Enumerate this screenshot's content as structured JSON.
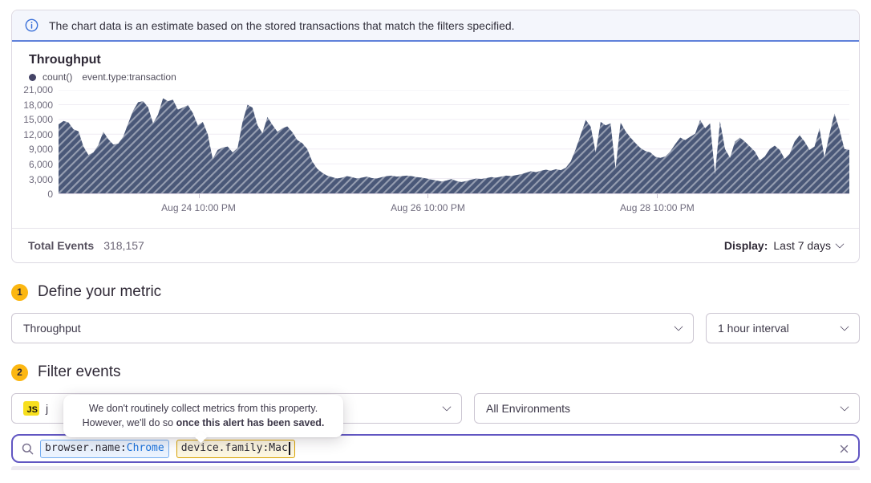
{
  "banner": {
    "text": "The chart data is an estimate based on the stored transactions that match the filters specified."
  },
  "chart": {
    "title": "Throughput",
    "legend_metric": "count()",
    "legend_filter": "event.type:transaction"
  },
  "chart_data": {
    "type": "area",
    "title": "Throughput",
    "series_name": "count() event.type:transaction",
    "ymax": 21000,
    "ylim": [
      0,
      21000
    ],
    "grid": true,
    "yticks": [
      "21,000",
      "18,000",
      "15,000",
      "12,000",
      "9,000",
      "6,000",
      "3,000",
      "0"
    ],
    "xticks": [
      {
        "label": "Aug 24 10:00 PM",
        "pos": 0.177
      },
      {
        "label": "Aug 26 10:00 PM",
        "pos": 0.467
      },
      {
        "label": "Aug 28 10:00 PM",
        "pos": 0.757
      }
    ],
    "values": [
      14000,
      14700,
      14400,
      13000,
      12600,
      9500,
      7800,
      8300,
      9800,
      12500,
      11000,
      9900,
      10100,
      11500,
      14200,
      16800,
      18500,
      18700,
      17500,
      14200,
      16000,
      19300,
      18700,
      19000,
      17000,
      17400,
      17900,
      16300,
      13800,
      14500,
      12000,
      7000,
      8800,
      9300,
      9500,
      8300,
      9200,
      14500,
      18000,
      17400,
      13800,
      12200,
      15500,
      13900,
      12500,
      13200,
      13600,
      12400,
      10800,
      10200,
      9000,
      6500,
      5000,
      4200,
      3600,
      3300,
      3000,
      3200,
      3500,
      3300,
      3000,
      3200,
      3400,
      3100,
      3000,
      3300,
      3500,
      3600,
      3400,
      3500,
      3600,
      3500,
      3300,
      3200,
      3000,
      2800,
      2600,
      2400,
      2600,
      2900,
      2500,
      2300,
      2500,
      2800,
      3000,
      2900,
      3100,
      3300,
      3200,
      3400,
      3600,
      3500,
      3700,
      3900,
      4200,
      4500,
      4300,
      4600,
      4800,
      4600,
      4900,
      4700,
      5200,
      6500,
      9000,
      12000,
      14900,
      13500,
      8300,
      14500,
      13800,
      14200,
      5000,
      14400,
      12600,
      11300,
      10200,
      9200,
      8600,
      8300,
      7400,
      7200,
      7500,
      8500,
      10000,
      11300,
      10800,
      11500,
      12100,
      14900,
      13200,
      14200,
      3900,
      14600,
      9000,
      7200,
      10500,
      11300,
      10500,
      9500,
      8500,
      6700,
      7500,
      9000,
      9700,
      8800,
      7000,
      8000,
      10500,
      11800,
      10500,
      8800,
      9500,
      13200,
      7300,
      12000,
      16200,
      13000,
      9000,
      8800
    ]
  },
  "chart_footer": {
    "total_label": "Total Events",
    "total_value": "318,157",
    "display_label": "Display:",
    "display_value": "Last 7 days"
  },
  "step1": {
    "num": "1",
    "title": "Define your metric"
  },
  "step2": {
    "num": "2",
    "title": "Filter events"
  },
  "metric_select": {
    "value": "Throughput"
  },
  "interval_select": {
    "value": "1 hour interval"
  },
  "project_select": {
    "badge": "JS",
    "visible_label": "j"
  },
  "env_select": {
    "value": "All Environments"
  },
  "tooltip": {
    "line1": "We don't routinely collect metrics from this property.",
    "line2_normal": "However, we'll do so ",
    "line2_bold": "once this alert has been saved."
  },
  "search": {
    "tokens": [
      {
        "key": "browser.name:",
        "value": "Chrome"
      },
      {
        "key": "device.family:",
        "value": "Mac"
      }
    ]
  },
  "colors": {
    "accent_purple": "#6156c2",
    "banner_blue": "#5f80da",
    "info_icon_blue": "#3a70d9",
    "step_badge_yellow": "#fcb712",
    "js_badge_yellow": "#f7df1e",
    "chart_fill": "#4a5878",
    "chart_hatch": "#a5aec3",
    "token_blue_border": "#76aef1",
    "token_yellow_border": "#d8a204",
    "token_value_blue": "#1a72dc"
  }
}
